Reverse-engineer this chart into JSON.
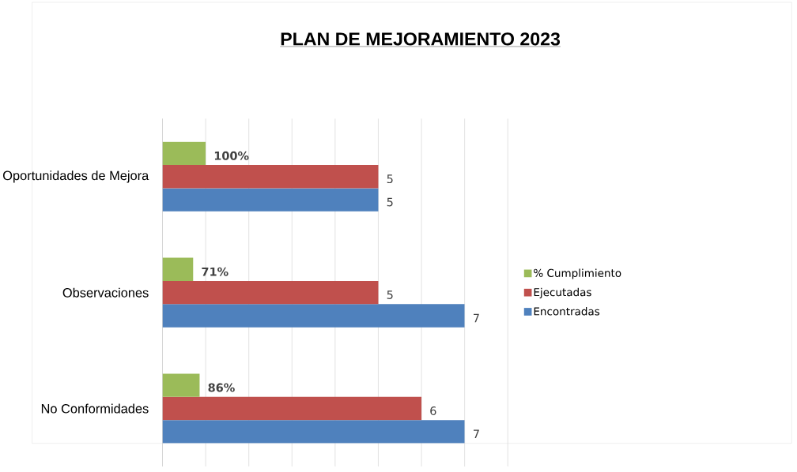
{
  "chart_data": {
    "type": "bar",
    "orientation": "horizontal",
    "title": "PLAN DE MEJORAMIENTO  2023",
    "categories": [
      "Oportunidades de Mejora",
      "Observaciones",
      "No Conformidades"
    ],
    "series": [
      {
        "name": "Encontradas",
        "color": "#4f81bd",
        "values": [
          5,
          7,
          7
        ],
        "value_labels": [
          "5",
          "7",
          "7"
        ]
      },
      {
        "name": "Ejecutadas",
        "color": "#c0504d",
        "values": [
          5,
          5,
          6
        ],
        "value_labels": [
          "5",
          "5",
          "6"
        ]
      },
      {
        "name": "% Cumplimiento",
        "color": "#9bbb59",
        "values": [
          1,
          0.71,
          0.86
        ],
        "value_labels": [
          "**100%**",
          "**71%**",
          "**86%**"
        ]
      }
    ],
    "xlim": [
      0,
      8
    ],
    "xticks": [
      {
        "value": 0,
        "label": null
      },
      {
        "value": 1,
        "label": null
      },
      {
        "value": 2,
        "label": null
      },
      {
        "value": 3,
        "label": null
      },
      {
        "value": 4,
        "label": null
      },
      {
        "value": 5,
        "label": null
      },
      {
        "value": 6,
        "label": null
      },
      {
        "value": 7,
        "label": null
      },
      {
        "value": 8,
        "label": null
      }
    ],
    "grid": "x",
    "legend": "right",
    "tick_labels": "y"
  }
}
